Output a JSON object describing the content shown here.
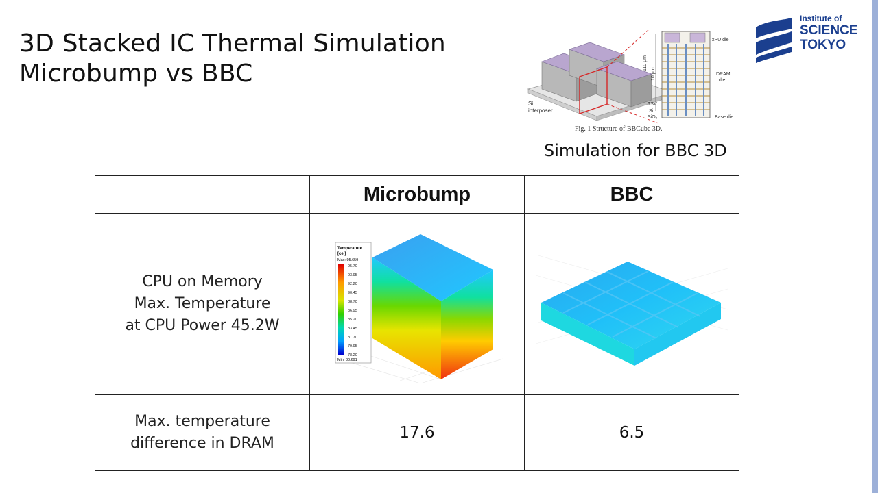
{
  "slide": {
    "title_line1": "3D Stacked IC Thermal Simulation",
    "title_line2": "Microbump vs BBC"
  },
  "logo": {
    "line1": "Institute of",
    "line2": "SCIENCE",
    "line3": "TOKYO",
    "color": "#1b3f8f"
  },
  "figure": {
    "caption": "Fig. 1 Structure of BBCube 3D.",
    "subtitle": "Simulation for BBC 3D",
    "labels": {
      "xpu": "xPU die",
      "dram": "DRAM",
      "dram2": "die",
      "tsv": "TSV",
      "si": "Si",
      "sio2": "SiO₂",
      "base": "Base die",
      "interposer1": "Si",
      "interposer2": "interposer",
      "dim1": "110 μm",
      "dim2": "10 μm"
    }
  },
  "table": {
    "headers": [
      "",
      "Microbump",
      "BBC"
    ],
    "row1": {
      "label_line1": "CPU on Memory",
      "label_line2": "Max. Temperature",
      "label_line3": "at CPU Power 45.2W"
    },
    "row2": {
      "label_line1": "Max. temperature",
      "label_line2": "difference in DRAM",
      "microbump": "17.6",
      "bbc": "6.5"
    }
  },
  "legend": {
    "title1": "Temperature",
    "title2": "[cel]",
    "max": "Max: 95.659",
    "min": "Min: 80.691",
    "ticks": [
      "95.70",
      "93.95",
      "92.20",
      "90.45",
      "88.70",
      "86.95",
      "85.20",
      "83.45",
      "81.70",
      "79.95",
      "78.20"
    ]
  }
}
